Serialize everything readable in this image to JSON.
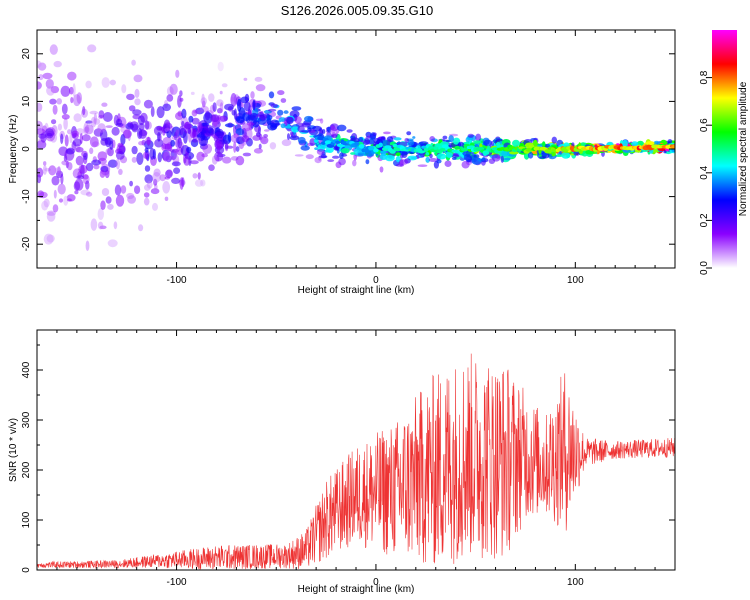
{
  "figure": {
    "title": "S126.2026.005.09.35.G10"
  },
  "chart_data": [
    {
      "type": "heatmap",
      "name": "spectrogram",
      "xlabel": "Height of straight line (km)",
      "ylabel": "Frequency (Hz)",
      "xlim": [
        -170,
        150
      ],
      "ylim": [
        -25,
        25
      ],
      "xticks": [
        -100,
        0,
        100
      ],
      "yticks": [
        -20,
        -10,
        0,
        10,
        20
      ],
      "colorbar": {
        "label": "Normalized spectral amplitude",
        "range": [
          0,
          1
        ],
        "ticks": [
          "0.0",
          "0.2",
          "0.4",
          "0.6",
          "0.8"
        ],
        "colors": [
          "#ffffff",
          "#8a00ff",
          "#0000ff",
          "#00ffff",
          "#00ff00",
          "#ffff00",
          "#ff0000",
          "#ff00ff"
        ]
      },
      "ridge": [
        {
          "x": -170,
          "y": 0,
          "spread": 20,
          "amp": 0.15
        },
        {
          "x": -120,
          "y": 0,
          "spread": 14,
          "amp": 0.2
        },
        {
          "x": -80,
          "y": 4,
          "spread": 8,
          "amp": 0.25
        },
        {
          "x": -50,
          "y": 8,
          "spread": 6,
          "amp": 0.3
        },
        {
          "x": -30,
          "y": 2,
          "spread": 4,
          "amp": 0.4
        },
        {
          "x": 0,
          "y": 0,
          "spread": 3,
          "amp": 0.45
        },
        {
          "x": 60,
          "y": 0,
          "spread": 2.5,
          "amp": 0.55
        },
        {
          "x": 100,
          "y": 0,
          "spread": 1.2,
          "amp": 0.8
        },
        {
          "x": 150,
          "y": 0.5,
          "spread": 1,
          "amp": 0.85
        }
      ]
    },
    {
      "type": "line",
      "name": "snr",
      "xlabel": "Height of straight line (km)",
      "ylabel": "SNR (10 * v/v)",
      "xlim": [
        -170,
        150
      ],
      "ylim": [
        0,
        480
      ],
      "xticks": [
        -100,
        0,
        100
      ],
      "yticks": [
        0,
        100,
        200,
        300,
        400
      ],
      "color": "#ee3333",
      "envelope": [
        {
          "x": -170,
          "mean": 10,
          "noise": 6
        },
        {
          "x": -130,
          "mean": 12,
          "noise": 8
        },
        {
          "x": -110,
          "mean": 18,
          "noise": 14
        },
        {
          "x": -80,
          "mean": 25,
          "noise": 25
        },
        {
          "x": -45,
          "mean": 28,
          "noise": 25
        },
        {
          "x": -35,
          "mean": 40,
          "noise": 40
        },
        {
          "x": -25,
          "mean": 100,
          "noise": 80
        },
        {
          "x": -10,
          "mean": 150,
          "noise": 100
        },
        {
          "x": 10,
          "mean": 160,
          "noise": 140
        },
        {
          "x": 30,
          "mean": 200,
          "noise": 200
        },
        {
          "x": 45,
          "mean": 230,
          "noise": 210
        },
        {
          "x": 65,
          "mean": 220,
          "noise": 200
        },
        {
          "x": 75,
          "mean": 230,
          "noise": 130
        },
        {
          "x": 85,
          "mean": 210,
          "noise": 100
        },
        {
          "x": 95,
          "mean": 240,
          "noise": 170
        },
        {
          "x": 105,
          "mean": 235,
          "noise": 30
        },
        {
          "x": 120,
          "mean": 240,
          "noise": 18
        },
        {
          "x": 150,
          "mean": 245,
          "noise": 20
        }
      ]
    }
  ]
}
